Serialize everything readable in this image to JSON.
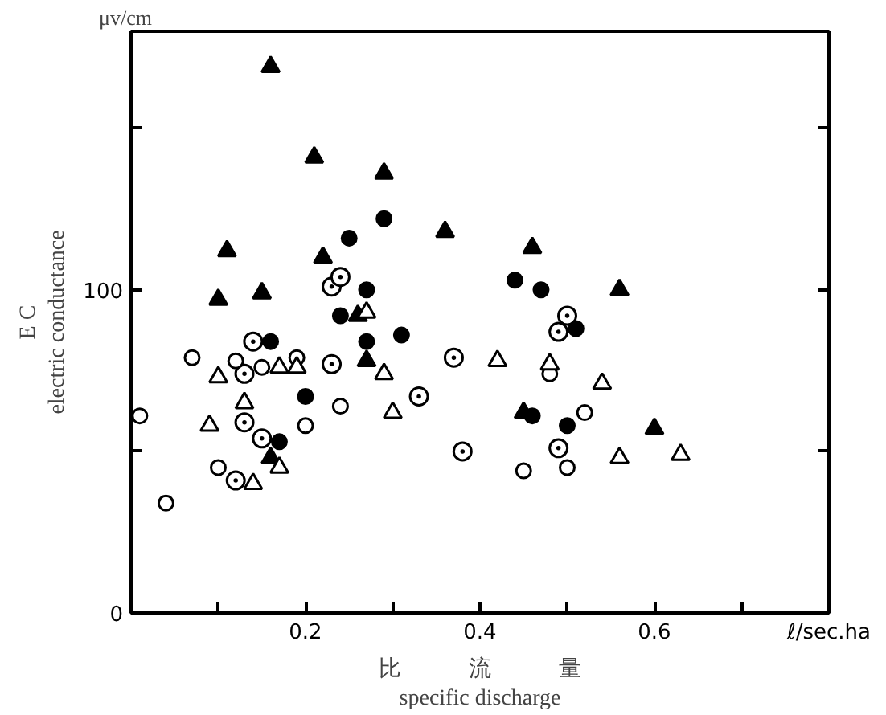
{
  "chart_data": {
    "type": "scatter",
    "xlabel": "比　　　流　　　量\nspecific discharge",
    "ylabel": "E C\nelectric conductance",
    "annotations": [
      "μv/cm"
    ],
    "xlim": [
      0,
      0.8
    ],
    "ylim": [
      0,
      180
    ],
    "xticks": [
      {
        "value": 0.1,
        "label": null
      },
      0.2,
      {
        "value": 0.3,
        "label": null
      },
      0.4,
      {
        "value": 0.5,
        "label": null
      },
      0.6,
      {
        "value": 0.7,
        "label": null
      },
      {
        "value": 0.8,
        "label": "ℓ/sec.ha"
      }
    ],
    "yticks": [
      0,
      {
        "value": 50,
        "label": null
      },
      100,
      {
        "value": 150,
        "label": null
      }
    ],
    "grid": false,
    "series": [
      {
        "color": "#000000",
        "marker": "triangle",
        "x": [
          0.16,
          0.21,
          0.29,
          0.36,
          0.11,
          0.22,
          0.1,
          0.15,
          0.26,
          0.46,
          0.56,
          0.27,
          0.16,
          0.6,
          0.45
        ],
        "values": [
          169,
          141,
          136,
          118,
          112,
          110,
          97,
          99,
          92,
          113,
          100,
          78,
          48,
          57,
          62
        ]
      },
      {
        "color": "#000000",
        "marker": "circle",
        "x": [
          0.29,
          0.25,
          0.27,
          0.24,
          0.44,
          0.47,
          0.51,
          0.16,
          0.27,
          0.31,
          0.2,
          0.17,
          0.5,
          0.46
        ],
        "values": [
          122,
          116,
          100,
          92,
          103,
          100,
          88,
          84,
          84,
          86,
          67,
          53,
          58,
          61
        ]
      },
      {
        "color": "#000000",
        "marker": "circle_dot",
        "x": [
          0.23,
          0.24,
          0.5,
          0.49,
          0.14,
          0.13,
          0.23,
          0.37,
          0.33,
          0.13,
          0.15,
          0.38,
          0.12,
          0.49
        ],
        "values": [
          101,
          104,
          92,
          87,
          84,
          74,
          77,
          79,
          67,
          59,
          54,
          50,
          41,
          51
        ]
      },
      {
        "color": "#000000",
        "marker": "circle_open",
        "x": [
          0.07,
          0.12,
          0.15,
          0.19,
          0.24,
          0.01,
          0.2,
          0.1,
          0.04,
          0.48,
          0.52,
          0.45,
          0.5
        ],
        "values": [
          79,
          78,
          76,
          79,
          64,
          61,
          58,
          45,
          34,
          74,
          62,
          44,
          45
        ]
      },
      {
        "color": "#000000",
        "marker": "triangle_open",
        "x": [
          0.27,
          0.1,
          0.17,
          0.19,
          0.29,
          0.13,
          0.3,
          0.09,
          0.17,
          0.14,
          0.42,
          0.48,
          0.54,
          0.56,
          0.63
        ],
        "values": [
          93,
          73,
          76,
          76,
          74,
          65,
          62,
          58,
          45,
          40,
          78,
          77,
          71,
          48,
          49
        ]
      }
    ]
  }
}
